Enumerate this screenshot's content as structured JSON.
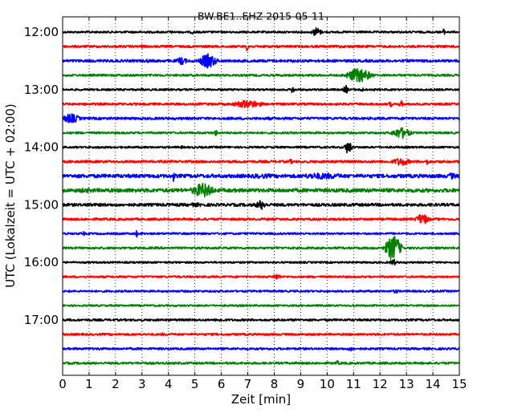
{
  "chart_data": {
    "type": "line",
    "title": "BW.BE1..EHZ 2015-05-11",
    "xlabel": "Zeit  [min]",
    "ylabel": "UTC (Lokalzeit = UTC + 02:00)",
    "xlim": [
      0,
      15
    ],
    "x_ticks": [
      "0",
      "1",
      "2",
      "3",
      "4",
      "5",
      "6",
      "7",
      "8",
      "9",
      "10",
      "11",
      "12",
      "13",
      "14",
      "15"
    ],
    "y_tick_labels": [
      "12:00",
      "13:00",
      "14:00",
      "15:00",
      "16:00",
      "17:00"
    ],
    "grid": "vertical dotted",
    "trace_colors": [
      "#000000",
      "#ff0000",
      "#0000ff",
      "#008000"
    ],
    "rows": [
      {
        "start": "12:00",
        "color": "#000000",
        "noise": 1.2,
        "events": [
          {
            "min": 9.6,
            "amp": 6,
            "dur": 0.25
          },
          {
            "min": 14.4,
            "amp": 4,
            "dur": 0.1
          },
          {
            "min": 4.9,
            "amp": 2.5,
            "dur": 0.1
          },
          {
            "min": 4.1,
            "amp": 2,
            "dur": 0.1
          }
        ]
      },
      {
        "start": "12:15",
        "color": "#ff0000",
        "noise": 1.4,
        "events": [
          {
            "min": 7.0,
            "amp": 6,
            "dur": 0.12
          },
          {
            "min": 3.0,
            "amp": 2.5,
            "dur": 0.15
          },
          {
            "min": 10.5,
            "amp": 2,
            "dur": 0.2
          }
        ]
      },
      {
        "start": "12:30",
        "color": "#0000ff",
        "noise": 1.6,
        "events": [
          {
            "min": 5.5,
            "amp": 9,
            "dur": 0.45
          },
          {
            "min": 4.5,
            "amp": 5,
            "dur": 0.3
          },
          {
            "min": 8.7,
            "amp": 2,
            "dur": 0.2
          },
          {
            "min": 3.2,
            "amp": 2.5,
            "dur": 0.2
          }
        ]
      },
      {
        "start": "12:45",
        "color": "#008000",
        "noise": 1.3,
        "events": [
          {
            "min": 11.2,
            "amp": 9,
            "dur": 0.65
          }
        ]
      },
      {
        "start": "13:00",
        "color": "#000000",
        "noise": 1.2,
        "events": [
          {
            "min": 8.7,
            "amp": 5,
            "dur": 0.1
          },
          {
            "min": 10.7,
            "amp": 6,
            "dur": 0.12
          },
          {
            "min": 11.3,
            "amp": 4,
            "dur": 0.1
          },
          {
            "min": 3.0,
            "amp": 2,
            "dur": 0.1
          }
        ]
      },
      {
        "start": "13:15",
        "color": "#ff0000",
        "noise": 1.4,
        "events": [
          {
            "min": 7.0,
            "amp": 5,
            "dur": 0.8
          },
          {
            "min": 12.4,
            "amp": 4,
            "dur": 0.1
          },
          {
            "min": 12.8,
            "amp": 4,
            "dur": 0.15
          }
        ]
      },
      {
        "start": "13:30",
        "color": "#0000ff",
        "noise": 1.5,
        "events": [
          {
            "min": 0.3,
            "amp": 6,
            "dur": 0.5
          },
          {
            "min": 7.8,
            "amp": 2,
            "dur": 0.3
          }
        ]
      },
      {
        "start": "13:45",
        "color": "#008000",
        "noise": 1.3,
        "events": [
          {
            "min": 12.8,
            "amp": 7,
            "dur": 0.5
          },
          {
            "min": 5.8,
            "amp": 4,
            "dur": 0.1
          }
        ]
      },
      {
        "start": "14:00",
        "color": "#000000",
        "noise": 1.2,
        "events": [
          {
            "min": 10.8,
            "amp": 8,
            "dur": 0.2
          },
          {
            "min": 1.4,
            "amp": 5,
            "dur": 0.05
          },
          {
            "min": 4.5,
            "amp": 2,
            "dur": 0.1
          }
        ]
      },
      {
        "start": "14:15",
        "color": "#ff0000",
        "noise": 1.5,
        "events": [
          {
            "min": 12.8,
            "amp": 5,
            "dur": 0.5
          },
          {
            "min": 8.6,
            "amp": 3,
            "dur": 0.2
          },
          {
            "min": 13.8,
            "amp": 4,
            "dur": 0.1
          }
        ]
      },
      {
        "start": "14:30",
        "color": "#0000ff",
        "noise": 2.2,
        "events": [
          {
            "min": 4.2,
            "amp": 8,
            "dur": 0.05
          },
          {
            "min": 9.8,
            "amp": 4,
            "dur": 1.5
          },
          {
            "min": 14.7,
            "amp": 4,
            "dur": 0.3
          },
          {
            "min": 7.5,
            "amp": 3,
            "dur": 1.0
          }
        ]
      },
      {
        "start": "14:45",
        "color": "#008000",
        "noise": 2.3,
        "events": [
          {
            "min": 5.3,
            "amp": 9,
            "dur": 0.6
          },
          {
            "min": 0.9,
            "amp": 3,
            "dur": 0.8
          },
          {
            "min": 2.5,
            "amp": 2.5,
            "dur": 0.6
          }
        ]
      },
      {
        "start": "15:00",
        "color": "#000000",
        "noise": 1.8,
        "events": [
          {
            "min": 7.5,
            "amp": 6,
            "dur": 0.3
          },
          {
            "min": 1.0,
            "amp": 2.5,
            "dur": 0.5
          },
          {
            "min": 5.0,
            "amp": 2.5,
            "dur": 0.8
          }
        ]
      },
      {
        "start": "15:15",
        "color": "#ff0000",
        "noise": 1.4,
        "events": [
          {
            "min": 13.6,
            "amp": 7,
            "dur": 0.35
          }
        ]
      },
      {
        "start": "15:30",
        "color": "#0000ff",
        "noise": 1.2,
        "events": [
          {
            "min": 0.8,
            "amp": 4,
            "dur": 0.05
          },
          {
            "min": 2.8,
            "amp": 5,
            "dur": 0.05
          }
        ]
      },
      {
        "start": "15:45",
        "color": "#008000",
        "noise": 1.3,
        "events": [
          {
            "min": 12.5,
            "amp": 16,
            "dur": 0.4
          },
          {
            "min": 8.1,
            "amp": 2,
            "dur": 0.1
          }
        ]
      },
      {
        "start": "16:00",
        "color": "#000000",
        "noise": 1.1,
        "events": [
          {
            "min": 12.5,
            "amp": 4,
            "dur": 0.2
          },
          {
            "min": 3.2,
            "amp": 2,
            "dur": 0.1
          }
        ]
      },
      {
        "start": "16:15",
        "color": "#ff0000",
        "noise": 1.2,
        "events": [
          {
            "min": 8.1,
            "amp": 4,
            "dur": 0.25
          }
        ]
      },
      {
        "start": "16:30",
        "color": "#0000ff",
        "noise": 1.2,
        "events": [
          {
            "min": 12.6,
            "amp": 2.5,
            "dur": 0.2
          }
        ]
      },
      {
        "start": "16:45",
        "color": "#008000",
        "noise": 1.1,
        "events": [
          {
            "min": 11.0,
            "amp": 2,
            "dur": 0.1
          }
        ]
      },
      {
        "start": "17:00",
        "color": "#000000",
        "noise": 1.3,
        "events": [
          {
            "min": 6.0,
            "amp": 2,
            "dur": 0.3
          }
        ]
      },
      {
        "start": "17:15",
        "color": "#ff0000",
        "noise": 1.3,
        "events": [
          {
            "min": 3.8,
            "amp": 2,
            "dur": 0.2
          }
        ]
      },
      {
        "start": "17:30",
        "color": "#0000ff",
        "noise": 1.3,
        "events": [
          {
            "min": 10.9,
            "amp": 3,
            "dur": 0.2
          },
          {
            "min": 1.4,
            "amp": 2,
            "dur": 0.2
          }
        ]
      },
      {
        "start": "17:45",
        "color": "#008000",
        "noise": 1.3,
        "events": [
          {
            "min": 10.4,
            "amp": 3,
            "dur": 0.15
          },
          {
            "min": 3.0,
            "amp": 2,
            "dur": 0.2
          }
        ]
      }
    ]
  }
}
